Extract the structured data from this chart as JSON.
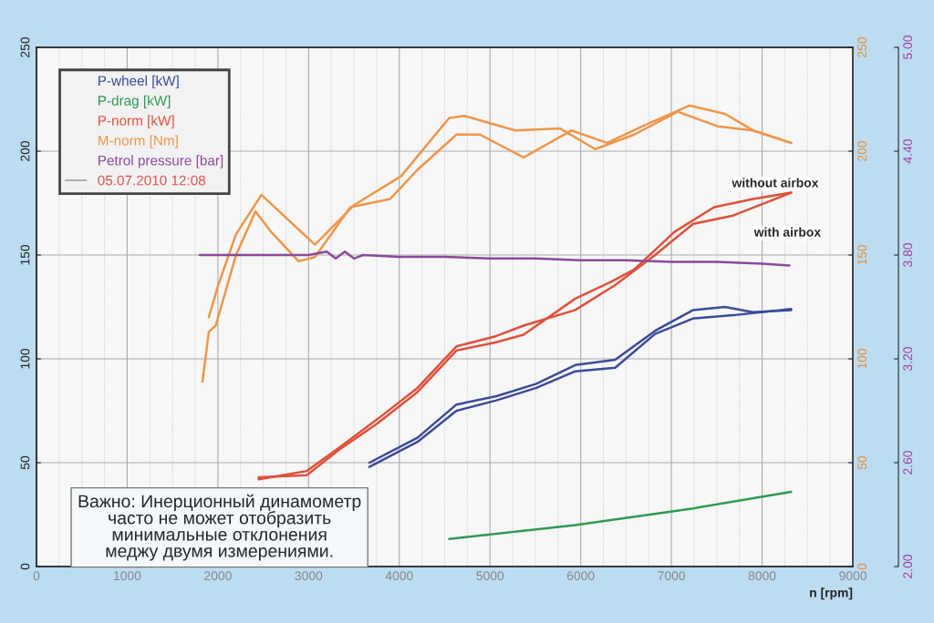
{
  "chart_data": {
    "type": "line",
    "xlabel": "n [rpm]",
    "xlim": [
      0,
      9000
    ],
    "xticks": [
      0,
      1000,
      2000,
      3000,
      4000,
      5000,
      6000,
      7000,
      8000,
      9000
    ],
    "ylim": [
      0,
      250
    ],
    "yticks": [
      0,
      50,
      100,
      150,
      200,
      250
    ],
    "y2lim": [
      0,
      250
    ],
    "y2ticks": [
      0,
      50,
      100,
      150,
      200,
      250
    ],
    "y3lim": [
      2.0,
      5.0
    ],
    "y3ticks": [
      {
        "value": 2.0,
        "label": "2.00"
      },
      {
        "value": 2.6,
        "label": "2.60"
      },
      {
        "value": 3.2,
        "label": "3.20"
      },
      {
        "value": 3.8,
        "label": "3.80"
      },
      {
        "value": 4.4,
        "label": "4.40"
      },
      {
        "value": 5.0,
        "label": "5.00"
      }
    ],
    "grid": true,
    "legend": "top left",
    "annotations": [
      "05.07.2010 12:08",
      "without airbox",
      "with airbox",
      "Важно: Инерционный динамометр\nчасто не может отобразить\nминимальные отклонения\nмеджу двумя измерениями."
    ],
    "series": [
      {
        "name": "P-wheel [kW]",
        "color": "#3b4a9a",
        "x": [
          3670,
          4200,
          4630,
          5070,
          5510,
          5940,
          6380,
          6820,
          7240,
          7590,
          7900,
          8320
        ],
        "values": [
          50,
          62,
          78,
          82,
          88,
          97,
          99.6,
          113.5,
          123.5,
          125,
          122.5,
          123.5
        ]
      },
      {
        "color": "#3b4a9a",
        "x": [
          3670,
          4200,
          4630,
          5070,
          5510,
          5940,
          6380,
          6820,
          7240,
          7680,
          8320
        ],
        "values": [
          48,
          60,
          75,
          80,
          86,
          94,
          95.7,
          112,
          119.5,
          121,
          124
        ]
      },
      {
        "name": "P-drag [kW]",
        "color": "#2e9a4f",
        "x": [
          4550,
          5940,
          7240,
          8320
        ],
        "values": [
          13.3,
          20,
          28,
          36
        ]
      },
      {
        "name": "P-norm [kW]",
        "color": "#e0503a",
        "x": [
          2450,
          2980,
          3330,
          3760,
          4200,
          4630,
          5070,
          5370,
          5940,
          6330,
          6590,
          7030,
          7470,
          7900,
          8320
        ],
        "values": [
          43,
          44,
          56,
          69,
          84,
          104,
          108,
          111.6,
          129,
          137,
          143,
          161,
          173,
          177,
          180
        ]
      },
      {
        "color": "#e0503a",
        "x": [
          2450,
          2980,
          3330,
          3760,
          4200,
          4630,
          5070,
          5370,
          5940,
          6380,
          6820,
          7240,
          7680,
          8320
        ],
        "values": [
          42,
          46,
          57,
          71,
          86,
          106,
          111,
          116,
          123.5,
          135.5,
          150,
          165,
          169,
          180
        ]
      },
      {
        "name": "M-norm [Nm]",
        "color": "#f0954a",
        "axis": "y2",
        "x": [
          1830,
          1900,
          1976,
          2200,
          2415,
          2590,
          2890,
          3070,
          3460,
          3900,
          4200,
          4630,
          4890,
          5370,
          5900,
          6290,
          6730,
          7200,
          7590,
          7900,
          8320
        ],
        "values": [
          89,
          113,
          116,
          150,
          171,
          161,
          147,
          149,
          173,
          177,
          191,
          208,
          208,
          197,
          210,
          204,
          213,
          222,
          218,
          210,
          204
        ]
      },
      {
        "color": "#f0954a",
        "axis": "y2",
        "x": [
          1900,
          2000,
          2200,
          2480,
          3070,
          3500,
          4020,
          4550,
          4720,
          5280,
          5770,
          6160,
          6590,
          7070,
          7510,
          7900,
          8320
        ],
        "values": [
          120,
          135,
          160,
          179,
          155,
          174,
          188,
          216,
          217,
          210,
          211,
          201,
          208,
          219,
          212,
          210,
          204
        ]
      },
      {
        "name": "Petrol pressure [bar]",
        "color": "#8a4a9a",
        "axis": "y3",
        "x": [
          1800,
          2500,
          3000,
          3200,
          3300,
          3400,
          3500,
          3600,
          4000,
          4500,
          5000,
          5500,
          6000,
          6500,
          7000,
          7500,
          8000,
          8300
        ],
        "values": [
          3.8,
          3.8,
          3.8,
          3.82,
          3.78,
          3.82,
          3.78,
          3.8,
          3.79,
          3.79,
          3.78,
          3.78,
          3.77,
          3.77,
          3.76,
          3.76,
          3.75,
          3.74
        ]
      }
    ]
  }
}
